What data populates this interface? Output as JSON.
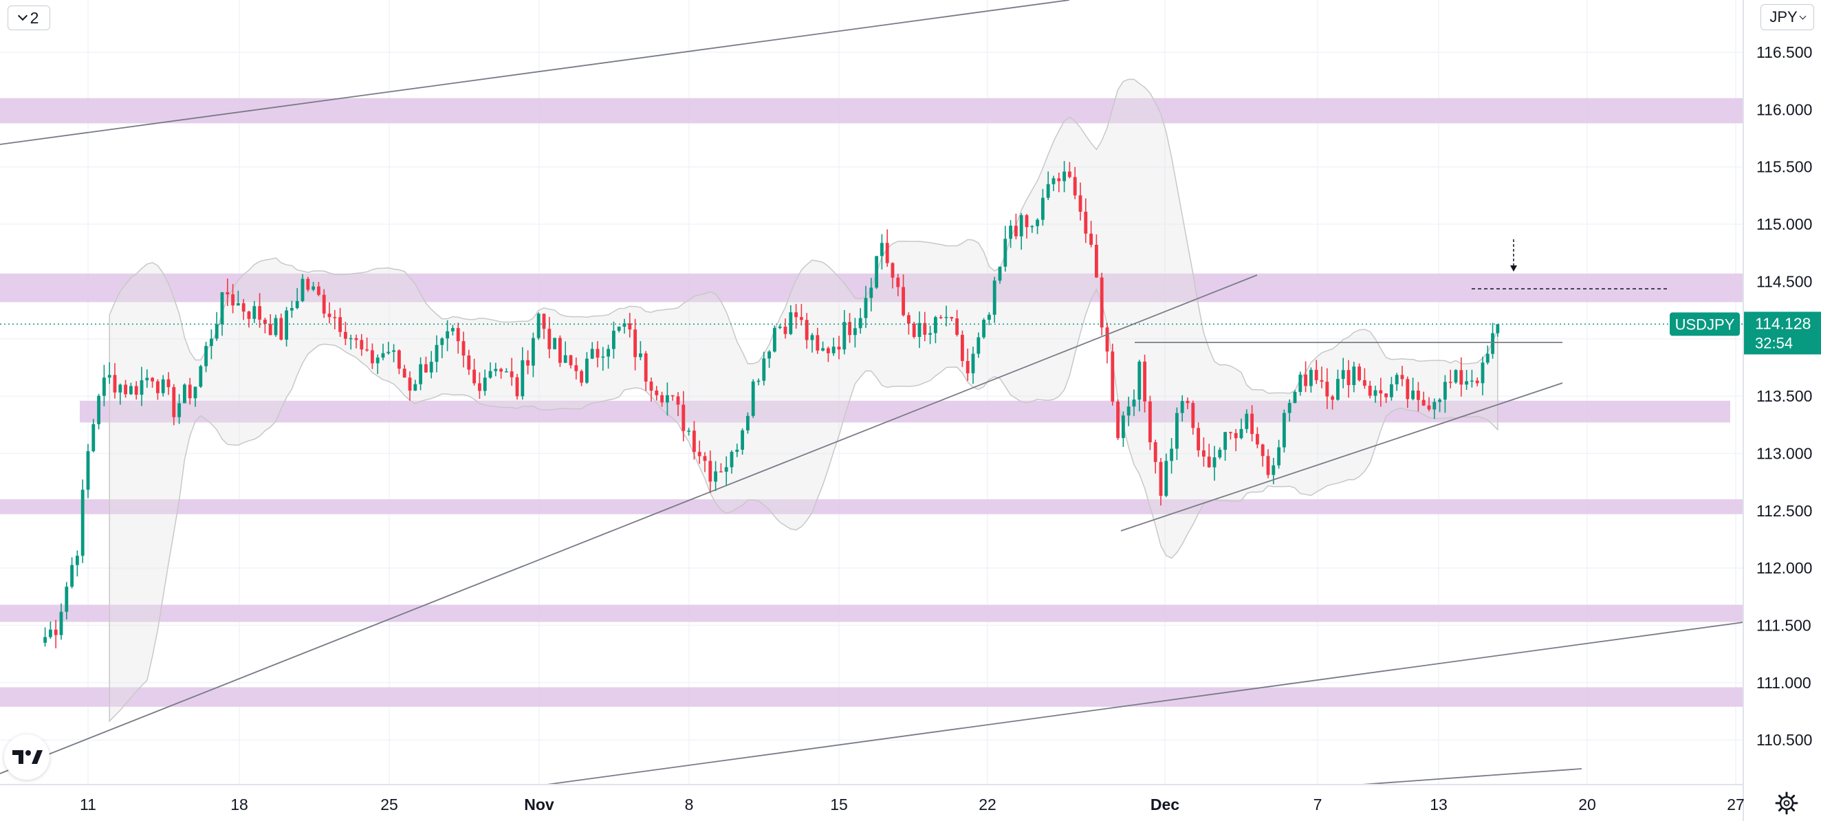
{
  "toolbar": {
    "layers_count": "2",
    "currency": "JPY"
  },
  "price_label": {
    "symbol": "USDJPY",
    "price": "114.128",
    "countdown": "32:54",
    "color": "#089981"
  },
  "colors": {
    "up": "#089981",
    "down": "#f23645",
    "zone": "#e1c6e8",
    "band_fill": "#e3e3e3",
    "trendline": "#787b86"
  },
  "icons": [
    "chevron-down-icon",
    "tradingview-logo-icon",
    "settings-icon",
    "arrow-down-icon"
  ],
  "chart_data": {
    "type": "candlestick",
    "symbol": "USDJPY",
    "y_ticks": [
      "116.500",
      "116.000",
      "115.500",
      "115.000",
      "114.500",
      "114.000",
      "113.500",
      "113.000",
      "112.500",
      "112.000",
      "111.500",
      "111.000",
      "110.500"
    ],
    "x_ticks": [
      {
        "label": "11",
        "bold": false
      },
      {
        "label": "18",
        "bold": false
      },
      {
        "label": "25",
        "bold": false
      },
      {
        "label": "Nov",
        "bold": true
      },
      {
        "label": "8",
        "bold": false
      },
      {
        "label": "15",
        "bold": false
      },
      {
        "label": "22",
        "bold": false
      },
      {
        "label": "Dec",
        "bold": true
      },
      {
        "label": "7",
        "bold": false
      },
      {
        "label": "13",
        "bold": false
      },
      {
        "label": "20",
        "bold": false
      },
      {
        "label": "27",
        "bold": false
      }
    ],
    "ylim": [
      110.15,
      116.95
    ],
    "zones": [
      {
        "from": 115.88,
        "to": 116.1
      },
      {
        "from": 114.32,
        "to": 114.57
      },
      {
        "from": 113.27,
        "to": 113.46
      },
      {
        "from": 112.47,
        "to": 112.6
      },
      {
        "from": 111.53,
        "to": 111.68
      },
      {
        "from": 110.79,
        "to": 110.96
      }
    ],
    "last_price": 114.128,
    "anchors": [
      {
        "day": 8,
        "price": 111.4
      },
      {
        "day": 8.5,
        "price": 111.5
      },
      {
        "day": 9,
        "price": 111.85
      },
      {
        "day": 9.5,
        "price": 112.2
      },
      {
        "day": 10,
        "price": 113.0
      },
      {
        "day": 10.5,
        "price": 113.55
      },
      {
        "day": 11,
        "price": 113.65
      },
      {
        "day": 12,
        "price": 113.55
      },
      {
        "day": 13,
        "price": 113.7
      },
      {
        "day": 14,
        "price": 113.4
      },
      {
        "day": 15,
        "price": 113.6
      },
      {
        "day": 16,
        "price": 114.2
      },
      {
        "day": 16.5,
        "price": 114.4
      },
      {
        "day": 17,
        "price": 114.3
      },
      {
        "day": 18,
        "price": 114.2
      },
      {
        "day": 19,
        "price": 114.05
      },
      {
        "day": 20,
        "price": 114.5
      },
      {
        "day": 21,
        "price": 114.3
      },
      {
        "day": 22,
        "price": 114.1
      },
      {
        "day": 23,
        "price": 113.8
      },
      {
        "day": 24,
        "price": 113.9
      },
      {
        "day": 25,
        "price": 113.6
      },
      {
        "day": 26,
        "price": 113.85
      },
      {
        "day": 27,
        "price": 114.0
      },
      {
        "day": 28,
        "price": 113.6
      },
      {
        "day": 29,
        "price": 113.8
      },
      {
        "day": 30,
        "price": 113.55
      },
      {
        "day": 31,
        "price": 114.2
      },
      {
        "day": 32,
        "price": 113.8
      },
      {
        "day": 33,
        "price": 113.7
      },
      {
        "day": 34,
        "price": 113.95
      },
      {
        "day": 35,
        "price": 114.1
      },
      {
        "day": 36,
        "price": 113.7
      },
      {
        "day": 37,
        "price": 113.5
      },
      {
        "day": 38,
        "price": 113.2
      },
      {
        "day": 39,
        "price": 112.85
      },
      {
        "day": 40,
        "price": 112.95
      },
      {
        "day": 41,
        "price": 113.6
      },
      {
        "day": 42,
        "price": 114.1
      },
      {
        "day": 43,
        "price": 114.2
      },
      {
        "day": 44,
        "price": 113.85
      },
      {
        "day": 45,
        "price": 114.0
      },
      {
        "day": 46,
        "price": 114.25
      },
      {
        "day": 47,
        "price": 114.85
      },
      {
        "day": 48,
        "price": 114.2
      },
      {
        "day": 49,
        "price": 114.0
      },
      {
        "day": 50,
        "price": 114.2
      },
      {
        "day": 51,
        "price": 113.7
      },
      {
        "day": 52,
        "price": 114.2
      },
      {
        "day": 53,
        "price": 115.0
      },
      {
        "day": 54,
        "price": 114.95
      },
      {
        "day": 55,
        "price": 115.4
      },
      {
        "day": 56,
        "price": 115.35
      },
      {
        "day": 57,
        "price": 114.5
      },
      {
        "day": 58,
        "price": 113.2
      },
      {
        "day": 59,
        "price": 113.7
      },
      {
        "day": 60,
        "price": 112.7
      },
      {
        "day": 61,
        "price": 113.5
      },
      {
        "day": 62,
        "price": 112.9
      },
      {
        "day": 63,
        "price": 113.1
      },
      {
        "day": 64,
        "price": 113.35
      },
      {
        "day": 65,
        "price": 112.85
      },
      {
        "day": 66,
        "price": 113.45
      },
      {
        "day": 67,
        "price": 113.75
      },
      {
        "day": 68,
        "price": 113.55
      },
      {
        "day": 69,
        "price": 113.75
      },
      {
        "day": 70,
        "price": 113.5
      },
      {
        "day": 71,
        "price": 113.6
      },
      {
        "day": 72,
        "price": 113.4
      },
      {
        "day": 73,
        "price": 113.55
      },
      {
        "day": 74,
        "price": 113.65
      },
      {
        "day": 75,
        "price": 113.7
      },
      {
        "day": 75.7,
        "price": 114.128
      }
    ]
  }
}
